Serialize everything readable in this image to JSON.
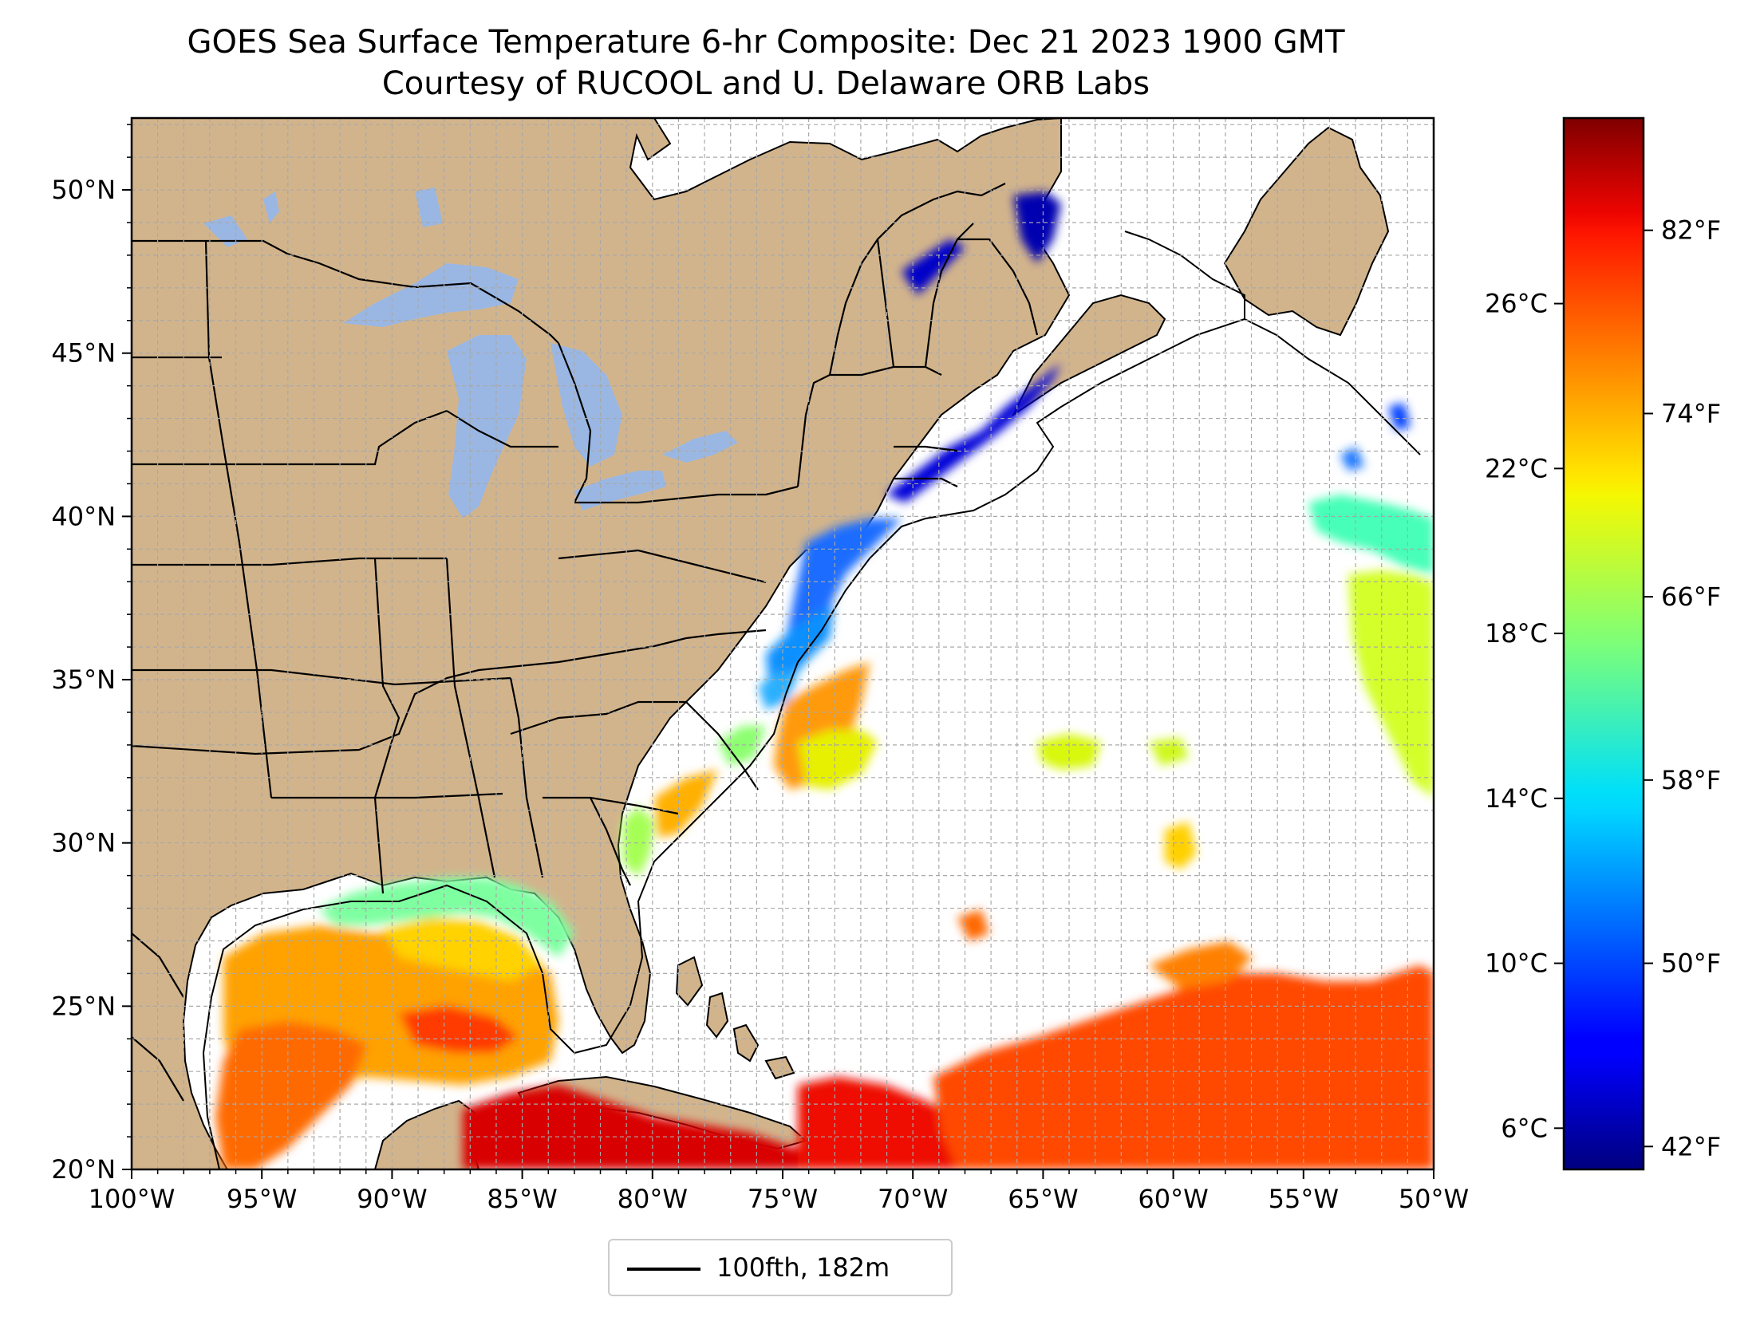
{
  "title": {
    "line1": "GOES Sea Surface Temperature 6-hr Composite: Dec 21 2023 1900 GMT",
    "line2": "Courtesy of RUCOOL and U. Delaware ORB Labs"
  },
  "map": {
    "lon_range": [
      -100,
      -50
    ],
    "lat_range": [
      20,
      52.2
    ],
    "lon_ticks": [
      {
        "value": -100,
        "label": "100°W"
      },
      {
        "value": -95,
        "label": "95°W"
      },
      {
        "value": -90,
        "label": "90°W"
      },
      {
        "value": -85,
        "label": "85°W"
      },
      {
        "value": -80,
        "label": "80°W"
      },
      {
        "value": -75,
        "label": "75°W"
      },
      {
        "value": -70,
        "label": "70°W"
      },
      {
        "value": -65,
        "label": "65°W"
      },
      {
        "value": -60,
        "label": "60°W"
      },
      {
        "value": -55,
        "label": "55°W"
      },
      {
        "value": -50,
        "label": "50°W"
      }
    ],
    "lat_ticks": [
      {
        "value": 20,
        "label": "20°N"
      },
      {
        "value": 25,
        "label": "25°N"
      },
      {
        "value": 30,
        "label": "30°N"
      },
      {
        "value": 35,
        "label": "35°N"
      },
      {
        "value": 40,
        "label": "40°N"
      },
      {
        "value": 45,
        "label": "45°N"
      },
      {
        "value": 50,
        "label": "50°N"
      }
    ],
    "gridlines": true,
    "colors": {
      "land": "#d2b48c",
      "lakes": "#9ab7e3",
      "ocean_no_data": "#ffffff",
      "boundaries": "#000000"
    }
  },
  "colorbar": {
    "colormap": "jet",
    "celsius_range": [
      5.0,
      30.5
    ],
    "celsius_ticks": [
      {
        "value": 6,
        "label": "6°C"
      },
      {
        "value": 10,
        "label": "10°C"
      },
      {
        "value": 14,
        "label": "14°C"
      },
      {
        "value": 18,
        "label": "18°C"
      },
      {
        "value": 22,
        "label": "22°C"
      },
      {
        "value": 26,
        "label": "26°C"
      }
    ],
    "fahrenheit_ticks": [
      {
        "value": 42,
        "label": "42°F"
      },
      {
        "value": 50,
        "label": "50°F"
      },
      {
        "value": 58,
        "label": "58°F"
      },
      {
        "value": 66,
        "label": "66°F"
      },
      {
        "value": 74,
        "label": "74°F"
      },
      {
        "value": 82,
        "label": "82°F"
      }
    ]
  },
  "legend": {
    "label": "100fth, 182m"
  }
}
